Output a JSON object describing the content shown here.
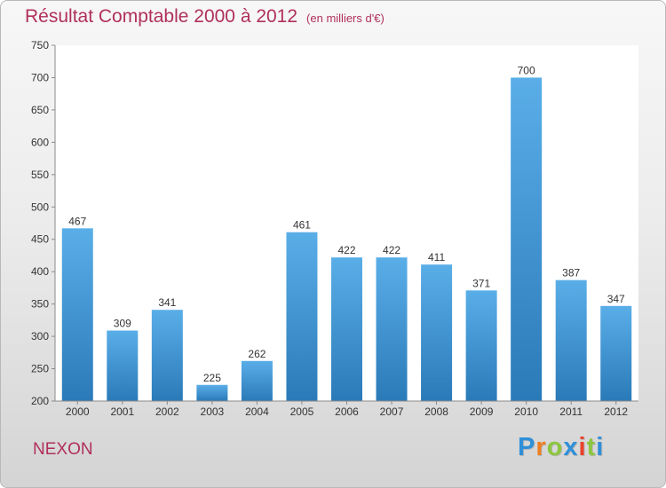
{
  "title": "Résultat Comptable 2000 à 2012",
  "subtitle": "(en milliers d'€)",
  "commune": "NEXON",
  "logo": {
    "letters": [
      "P",
      "r",
      "o",
      "x",
      "i",
      "t",
      "i"
    ],
    "colors": [
      "#2f8fd8",
      "#ee7d1f",
      "#8cc63f",
      "#2f8fd8",
      "#e8412c",
      "#8cc63f",
      "#2f8fd8"
    ]
  },
  "colors": {
    "bar_top": "#5aaee8",
    "bar_bottom": "#2a7ab8",
    "title": "#b0305a"
  },
  "chart_data": {
    "type": "bar",
    "categories": [
      "2000",
      "2001",
      "2002",
      "2003",
      "2004",
      "2005",
      "2006",
      "2007",
      "2008",
      "2009",
      "2010",
      "2011",
      "2012"
    ],
    "values": [
      467,
      309,
      341,
      225,
      262,
      461,
      422,
      422,
      411,
      371,
      700,
      387,
      347
    ],
    "ylim": [
      200,
      750
    ],
    "yticks": [
      200,
      250,
      300,
      350,
      400,
      450,
      500,
      550,
      600,
      650,
      700,
      750
    ],
    "grid": false,
    "data_labels": true
  }
}
